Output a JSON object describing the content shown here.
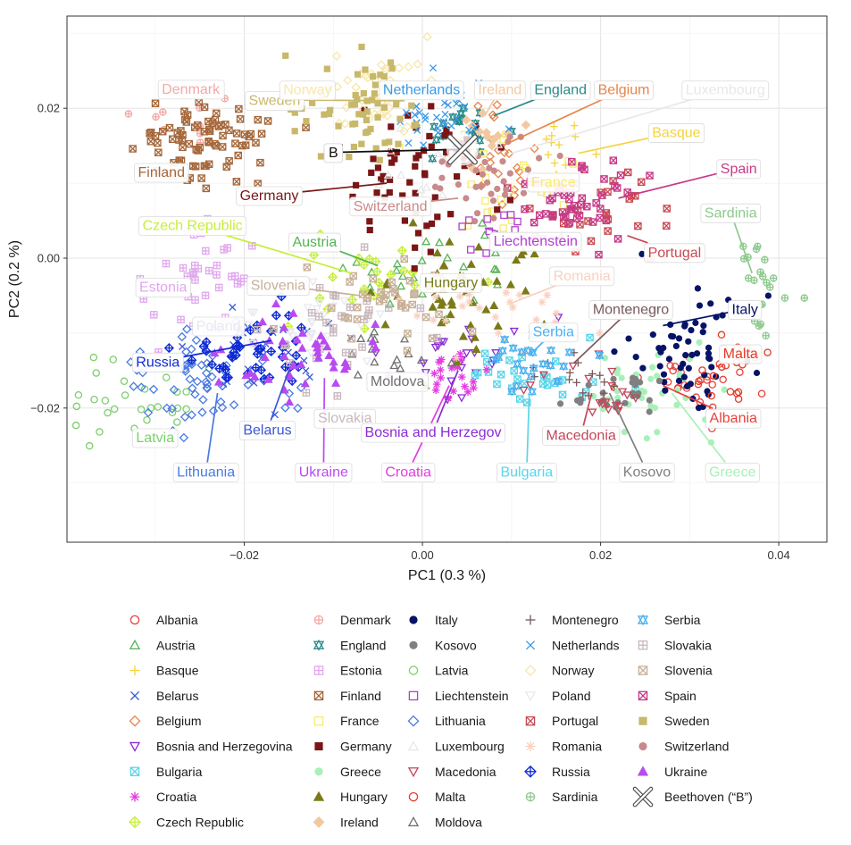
{
  "chart_data": {
    "type": "scatter",
    "xlabel": "PC1 (0.3 %)",
    "ylabel": "PC2 (0.2 %)",
    "xlim": [
      -0.0399,
      0.0454
    ],
    "ylim": [
      -0.0379,
      0.0323
    ],
    "xticks": [
      -0.02,
      0.0,
      0.02,
      0.04
    ],
    "xtick_labels": [
      "−0.02",
      "0.00",
      "0.02",
      "0.04"
    ],
    "yticks": [
      -0.02,
      0.0,
      0.02
    ],
    "ytick_labels": [
      "−0.02",
      "0.00",
      "0.02"
    ],
    "grid": true,
    "legend_position": "bottom",
    "series": [
      {
        "name": "Albania",
        "color": "#e8413c",
        "marker": "circle-open",
        "cx": 0.03,
        "cy": -0.017,
        "sx": 0.0035,
        "sy": 0.0025,
        "n": 25
      },
      {
        "name": "Austria",
        "color": "#56b356",
        "marker": "triangle-open",
        "cx": 0.001,
        "cy": -0.002,
        "sx": 0.005,
        "sy": 0.004,
        "n": 25
      },
      {
        "name": "Basque",
        "color": "#f5d33c",
        "marker": "plus",
        "cx": 0.016,
        "cy": 0.014,
        "sx": 0.002,
        "sy": 0.002,
        "n": 14
      },
      {
        "name": "Belarus",
        "color": "#3a58d6",
        "marker": "cross",
        "cx": -0.017,
        "cy": -0.013,
        "sx": 0.004,
        "sy": 0.003,
        "n": 30
      },
      {
        "name": "Belgium",
        "color": "#e8844a",
        "marker": "diamond-open",
        "cx": 0.008,
        "cy": 0.013,
        "sx": 0.003,
        "sy": 0.003,
        "n": 22
      },
      {
        "name": "Bosnia and Herzegovina",
        "color": "#8a2bd6",
        "marker": "tri-down-open",
        "cx": 0.004,
        "cy": -0.014,
        "sx": 0.004,
        "sy": 0.003,
        "n": 22
      },
      {
        "name": "Bulgaria",
        "color": "#5ad5ea",
        "marker": "square-x",
        "cx": 0.012,
        "cy": -0.016,
        "sx": 0.004,
        "sy": 0.002,
        "n": 30
      },
      {
        "name": "Croatia",
        "color": "#e23ce0",
        "marker": "asterisk",
        "cx": 0.004,
        "cy": -0.015,
        "sx": 0.003,
        "sy": 0.002,
        "n": 22
      },
      {
        "name": "Czech Republic",
        "color": "#c6ee3a",
        "marker": "diamond-plus",
        "cx": -0.006,
        "cy": -0.003,
        "sx": 0.004,
        "sy": 0.003,
        "n": 25
      },
      {
        "name": "Denmark",
        "color": "#f2a9a6",
        "marker": "circle-plus",
        "cx": -0.026,
        "cy": 0.019,
        "sx": 0.003,
        "sy": 0.002,
        "n": 10
      },
      {
        "name": "England",
        "color": "#2a8a8a",
        "marker": "star-david",
        "cx": 0.005,
        "cy": 0.018,
        "sx": 0.002,
        "sy": 0.002,
        "n": 20
      },
      {
        "name": "Estonia",
        "color": "#e0a8ee",
        "marker": "square-plus",
        "cx": -0.024,
        "cy": -0.003,
        "sx": 0.003,
        "sy": 0.004,
        "n": 40
      },
      {
        "name": "Finland",
        "color": "#a5673a",
        "marker": "square-x",
        "cx": -0.025,
        "cy": 0.016,
        "sx": 0.0035,
        "sy": 0.0025,
        "n": 80
      },
      {
        "name": "France",
        "color": "#f6eb70",
        "marker": "square-open",
        "cx": 0.01,
        "cy": 0.01,
        "sx": 0.004,
        "sy": 0.004,
        "n": 25
      },
      {
        "name": "Germany",
        "color": "#7a1616",
        "marker": "square",
        "cx": 0.0,
        "cy": 0.01,
        "sx": 0.005,
        "sy": 0.005,
        "n": 60
      },
      {
        "name": "Greece",
        "color": "#a8f0b8",
        "marker": "circle",
        "cx": 0.025,
        "cy": -0.018,
        "sx": 0.004,
        "sy": 0.003,
        "n": 40
      },
      {
        "name": "Hungary",
        "color": "#7a7a18",
        "marker": "triangle",
        "cx": 0.003,
        "cy": -0.005,
        "sx": 0.005,
        "sy": 0.004,
        "n": 50
      },
      {
        "name": "Ireland",
        "color": "#f2c8a0",
        "marker": "diamond",
        "cx": 0.007,
        "cy": 0.016,
        "sx": 0.002,
        "sy": 0.002,
        "n": 15
      },
      {
        "name": "Italy",
        "color": "#061366",
        "marker": "circle",
        "cx": 0.03,
        "cy": -0.012,
        "sx": 0.004,
        "sy": 0.004,
        "n": 60
      },
      {
        "name": "Kosovo",
        "color": "#808080",
        "marker": "circle",
        "cx": 0.021,
        "cy": -0.018,
        "sx": 0.003,
        "sy": 0.002,
        "n": 25
      },
      {
        "name": "Latvia",
        "color": "#7ccf6c",
        "marker": "circle-open",
        "cx": -0.031,
        "cy": -0.019,
        "sx": 0.004,
        "sy": 0.003,
        "n": 30
      },
      {
        "name": "Liechtenstein",
        "color": "#b040d0",
        "marker": "square-open",
        "cx": 0.007,
        "cy": 0.003,
        "sx": 0.002,
        "sy": 0.002,
        "n": 10
      },
      {
        "name": "Lithuania",
        "color": "#4a7ae0",
        "marker": "diamond-open",
        "cx": -0.025,
        "cy": -0.016,
        "sx": 0.004,
        "sy": 0.003,
        "n": 60
      },
      {
        "name": "Luxembourg",
        "color": "#e8e8ec",
        "marker": "triangle-open",
        "cx": 0.001,
        "cy": 0.013,
        "sx": 0.003,
        "sy": 0.003,
        "n": 12
      },
      {
        "name": "Macedonia",
        "color": "#c2475a",
        "marker": "tri-down-open",
        "cx": 0.019,
        "cy": -0.018,
        "sx": 0.003,
        "sy": 0.002,
        "n": 20
      },
      {
        "name": "Malta",
        "color": "#e53a24",
        "marker": "circle-open",
        "cx": 0.034,
        "cy": -0.015,
        "sx": 0.002,
        "sy": 0.002,
        "n": 20
      },
      {
        "name": "Moldova",
        "color": "#707070",
        "marker": "triangle-open",
        "cx": -0.003,
        "cy": -0.013,
        "sx": 0.003,
        "sy": 0.002,
        "n": 15
      },
      {
        "name": "Montenegro",
        "color": "#7a5a5a",
        "marker": "plus",
        "cx": 0.018,
        "cy": -0.016,
        "sx": 0.003,
        "sy": 0.002,
        "n": 15
      },
      {
        "name": "Netherlands",
        "color": "#3a9ae8",
        "marker": "cross",
        "cx": 0.002,
        "cy": 0.02,
        "sx": 0.003,
        "sy": 0.003,
        "n": 40
      },
      {
        "name": "Norway",
        "color": "#f7e7a8",
        "marker": "diamond-open",
        "cx": -0.005,
        "cy": 0.022,
        "sx": 0.004,
        "sy": 0.003,
        "n": 40
      },
      {
        "name": "Poland",
        "color": "#e8e8f0",
        "marker": "tri-down-open",
        "cx": -0.012,
        "cy": -0.008,
        "sx": 0.005,
        "sy": 0.003,
        "n": 30
      },
      {
        "name": "Portugal",
        "color": "#c94a52",
        "marker": "square-x",
        "cx": 0.02,
        "cy": 0.006,
        "sx": 0.003,
        "sy": 0.003,
        "n": 25
      },
      {
        "name": "Romania",
        "color": "#fad0c0",
        "marker": "asterisk",
        "cx": 0.008,
        "cy": -0.008,
        "sx": 0.004,
        "sy": 0.003,
        "n": 25
      },
      {
        "name": "Russia",
        "color": "#0e2ad6",
        "marker": "diamond-plus",
        "cx": -0.019,
        "cy": -0.012,
        "sx": 0.004,
        "sy": 0.003,
        "n": 45
      },
      {
        "name": "Sardinia",
        "color": "#8ec98e",
        "marker": "circle-plus",
        "cx": 0.038,
        "cy": -0.004,
        "sx": 0.002,
        "sy": 0.003,
        "n": 22
      },
      {
        "name": "Serbia",
        "color": "#4ab0f0",
        "marker": "star-david",
        "cx": 0.012,
        "cy": -0.014,
        "sx": 0.003,
        "sy": 0.002,
        "n": 25
      },
      {
        "name": "Slovakia",
        "color": "#c8b8be",
        "marker": "square-plus",
        "cx": -0.01,
        "cy": -0.01,
        "sx": 0.004,
        "sy": 0.003,
        "n": 30
      },
      {
        "name": "Slovenia",
        "color": "#c8b098",
        "marker": "square-x",
        "cx": -0.006,
        "cy": -0.006,
        "sx": 0.004,
        "sy": 0.003,
        "n": 35
      },
      {
        "name": "Spain",
        "color": "#c73a86",
        "marker": "square-x",
        "cx": 0.018,
        "cy": 0.008,
        "sx": 0.003,
        "sy": 0.003,
        "n": 55
      },
      {
        "name": "Sweden",
        "color": "#c8b86a",
        "marker": "square",
        "cx": -0.007,
        "cy": 0.02,
        "sx": 0.004,
        "sy": 0.004,
        "n": 60
      },
      {
        "name": "Switzerland",
        "color": "#c88a8a",
        "marker": "circle",
        "cx": 0.008,
        "cy": 0.011,
        "sx": 0.003,
        "sy": 0.003,
        "n": 40
      },
      {
        "name": "Ukraine",
        "color": "#b84af0",
        "marker": "triangle",
        "cx": -0.013,
        "cy": -0.013,
        "sx": 0.004,
        "sy": 0.003,
        "n": 45
      }
    ],
    "highlight": {
      "name": "Beethoven (“B”)",
      "x": 0.0045,
      "y": 0.0145,
      "label": "B"
    },
    "annotations": [
      {
        "text": "Denmark",
        "color": "#f2a9a6",
        "x": -0.026,
        "y": 0.0226,
        "tx": -0.026,
        "ty": 0.0226
      },
      {
        "text": "Sweden",
        "color": "#c8b86a",
        "x": -0.0166,
        "y": 0.0211,
        "tx": -0.002,
        "ty": 0.021
      },
      {
        "text": "Norway",
        "color": "#f7e7a8",
        "x": -0.0129,
        "y": 0.0225,
        "tx": -0.0129,
        "ty": 0.0225
      },
      {
        "text": "Netherlands",
        "color": "#3a9ae8",
        "x": -0.0001,
        "y": 0.0225,
        "tx": -0.0001,
        "ty": 0.0225
      },
      {
        "text": "Ireland",
        "color": "#f2c8a0",
        "x": 0.0087,
        "y": 0.0225,
        "tx": 0.007,
        "ty": 0.019
      },
      {
        "text": "England",
        "color": "#2a8a8a",
        "x": 0.0155,
        "y": 0.0225,
        "tx": 0.008,
        "ty": 0.019
      },
      {
        "text": "Belgium",
        "color": "#e8844a",
        "x": 0.0226,
        "y": 0.0225,
        "tx": 0.009,
        "ty": 0.015
      },
      {
        "text": "Luxembourg",
        "color": "#e8e8ec",
        "x": 0.034,
        "y": 0.0225,
        "tx": 0.01,
        "ty": 0.014
      },
      {
        "text": "Basque",
        "color": "#f5d33c",
        "x": 0.0285,
        "y": 0.0168,
        "tx": 0.0175,
        "ty": 0.014
      },
      {
        "text": "Finland",
        "color": "#a5673a",
        "x": -0.0293,
        "y": 0.0115,
        "tx": -0.0293,
        "ty": 0.0115
      },
      {
        "text": "Germany",
        "color": "#7a1616",
        "x": -0.0172,
        "y": 0.0084,
        "tx": -0.004,
        "ty": 0.01
      },
      {
        "text": "Spain",
        "color": "#c73a86",
        "x": 0.0355,
        "y": 0.012,
        "tx": 0.022,
        "ty": 0.008
      },
      {
        "text": "France",
        "color": "#f6eb70",
        "x": 0.0147,
        "y": 0.0102,
        "tx": 0.0147,
        "ty": 0.0102
      },
      {
        "text": "Switzerland",
        "color": "#c88a8a",
        "x": -0.0036,
        "y": 0.007,
        "tx": 0.004,
        "ty": 0.008
      },
      {
        "text": "Sardinia",
        "color": "#8ec98e",
        "x": 0.0346,
        "y": 0.0061,
        "tx": 0.037,
        "ty": -0.002
      },
      {
        "text": "Czech Republic",
        "color": "#c6ee3a",
        "x": -0.0258,
        "y": 0.0044,
        "tx": -0.008,
        "ty": -0.002
      },
      {
        "text": "Liechtenstein",
        "color": "#b040d0",
        "x": 0.0127,
        "y": 0.0023,
        "tx": 0.007,
        "ty": 0.004
      },
      {
        "text": "Austria",
        "color": "#56b356",
        "x": -0.0121,
        "y": 0.0022,
        "tx": -0.005,
        "ty": -0.001
      },
      {
        "text": "Portugal",
        "color": "#c94a52",
        "x": 0.0283,
        "y": 0.0008,
        "tx": 0.023,
        "ty": 0.003
      },
      {
        "text": "Estonia",
        "color": "#e0a8ee",
        "x": -0.0291,
        "y": -0.0038,
        "tx": -0.0291,
        "ty": -0.0038
      },
      {
        "text": "Slovenia",
        "color": "#c8b098",
        "x": -0.0162,
        "y": -0.0036,
        "tx": -0.007,
        "ty": -0.005
      },
      {
        "text": "Hungary",
        "color": "#7a7a18",
        "x": 0.0032,
        "y": -0.0032,
        "tx": 0.001,
        "ty": -0.005
      },
      {
        "text": "Romania",
        "color": "#fad0c0",
        "x": 0.0179,
        "y": -0.0023,
        "tx": 0.01,
        "ty": -0.006
      },
      {
        "text": "Montenegro",
        "color": "#7a5a5a",
        "x": 0.0234,
        "y": -0.0068,
        "tx": 0.017,
        "ty": -0.014
      },
      {
        "text": "Italy",
        "color": "#061366",
        "x": 0.0362,
        "y": -0.0068,
        "tx": 0.027,
        "ty": -0.009
      },
      {
        "text": "Poland",
        "color": "#e8e8f0",
        "x": -0.0229,
        "y": -0.009,
        "tx": -0.0229,
        "ty": -0.009
      },
      {
        "text": "Serbia",
        "color": "#4ab0f0",
        "x": 0.0147,
        "y": -0.0098,
        "tx": 0.012,
        "ty": -0.013
      },
      {
        "text": "Russia",
        "color": "#0e2ad6",
        "x": -0.0297,
        "y": -0.0138,
        "tx": -0.017,
        "ty": -0.011
      },
      {
        "text": "Malta",
        "color": "#e53a24",
        "x": 0.0357,
        "y": -0.0127,
        "tx": 0.033,
        "ty": -0.0145
      },
      {
        "text": "Moldova",
        "color": "#707070",
        "x": -0.0028,
        "y": -0.0164,
        "tx": -0.0028,
        "ty": -0.0164
      },
      {
        "text": "Albania",
        "color": "#e8413c",
        "x": 0.0349,
        "y": -0.0213,
        "tx": 0.027,
        "ty": -0.017
      },
      {
        "text": "Slovakia",
        "color": "#c8b8be",
        "x": -0.0087,
        "y": -0.0213,
        "tx": -0.0087,
        "ty": -0.0213
      },
      {
        "text": "Bosnia and Herzegov",
        "color": "#8a2bd6",
        "x": 0.0012,
        "y": -0.0232,
        "tx": 0.004,
        "ty": -0.015
      },
      {
        "text": "Macedonia",
        "color": "#c2475a",
        "x": 0.0178,
        "y": -0.0236,
        "tx": 0.019,
        "ty": -0.018
      },
      {
        "text": "Belarus",
        "color": "#3a58d6",
        "x": -0.0174,
        "y": -0.0229,
        "tx": -0.015,
        "ty": -0.015
      },
      {
        "text": "Latvia",
        "color": "#7ccf6c",
        "x": -0.03,
        "y": -0.0239,
        "tx": -0.03,
        "ty": -0.0239
      },
      {
        "text": "Lithuania",
        "color": "#4a7ae0",
        "x": -0.0243,
        "y": -0.0285,
        "tx": -0.023,
        "ty": -0.018
      },
      {
        "text": "Ukraine",
        "color": "#b84af0",
        "x": -0.0111,
        "y": -0.0285,
        "tx": -0.011,
        "ty": -0.016
      },
      {
        "text": "Croatia",
        "color": "#e23ce0",
        "x": -0.0016,
        "y": -0.0285,
        "tx": 0.003,
        "ty": -0.017
      },
      {
        "text": "Bulgaria",
        "color": "#5ad5ea",
        "x": 0.0117,
        "y": -0.0285,
        "tx": 0.012,
        "ty": -0.018
      },
      {
        "text": "Kosovo",
        "color": "#808080",
        "x": 0.0252,
        "y": -0.0285,
        "tx": 0.021,
        "ty": -0.018
      },
      {
        "text": "Greece",
        "color": "#a8f0b8",
        "x": 0.0348,
        "y": -0.0285,
        "tx": 0.028,
        "ty": -0.018
      }
    ]
  }
}
